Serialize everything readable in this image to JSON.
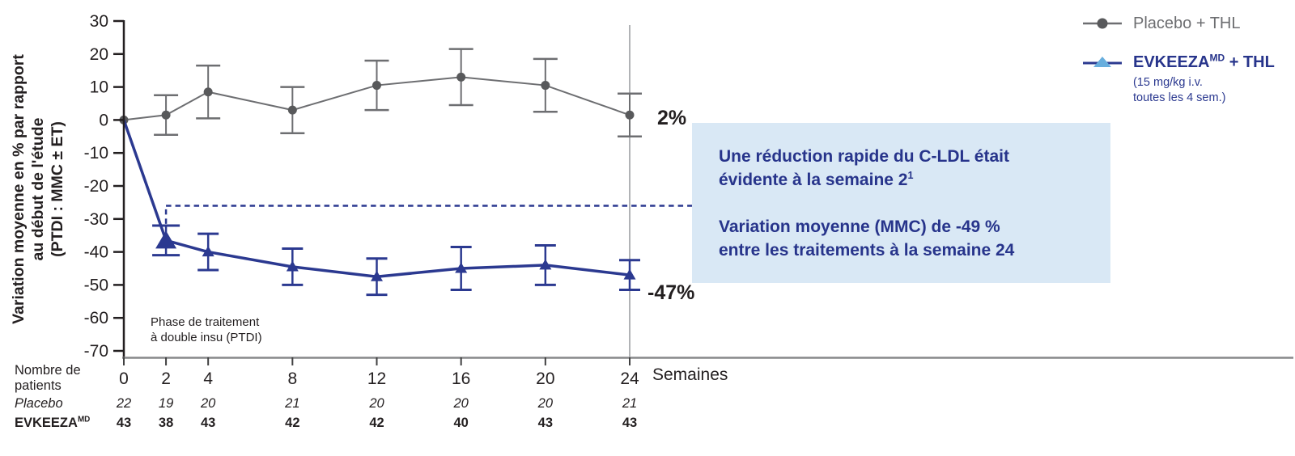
{
  "colors": {
    "navy": "#2b3990",
    "navy_text": "#27348b",
    "light_blue": "#68aedd",
    "box_bg": "#d9e8f5",
    "gray_line": "#6d6e71",
    "gray_marker": "#58595b",
    "ink": "#231f20",
    "axis_gray": "#87888a",
    "ref_line_gray": "#b1b3b6"
  },
  "y_axis": {
    "title_lines": [
      "Variation moyenne en % par rapport",
      "au début de l'étude",
      "(PTDI : MMC ± ET)"
    ],
    "ticks": [
      30,
      20,
      10,
      0,
      -10,
      -20,
      -30,
      -40,
      -50,
      -60,
      -70
    ]
  },
  "x_axis": {
    "label": "Semaines"
  },
  "chart_data": {
    "type": "line",
    "x": [
      0,
      2,
      4,
      8,
      12,
      16,
      20,
      24
    ],
    "series": [
      {
        "name": "Placebo + THL",
        "values": [
          0,
          1.5,
          8.5,
          3,
          10.5,
          13,
          10.5,
          1.5
        ],
        "errors": [
          0,
          6,
          8,
          7,
          7.5,
          8.5,
          8,
          6.5
        ],
        "marker": "circle",
        "end_label": "2%"
      },
      {
        "name": "EVKEEZA MD + THL (15 mg/kg i.v. toutes les 4 sem.)",
        "values": [
          0,
          -36.5,
          -40,
          -44.5,
          -47.5,
          -45,
          -44,
          -47
        ],
        "errors": [
          0,
          4.5,
          5.5,
          5.5,
          5.5,
          6.5,
          6,
          4.5
        ],
        "marker": "triangle",
        "end_label": "-47%",
        "highlight_point_index": 1
      }
    ],
    "ylim": [
      -70,
      30
    ],
    "xlabel": "Semaines",
    "ylabel": "Variation moyenne en % par rapport au début de l'étude (PTDI : MMC ± ET)",
    "grid": false,
    "legend_position": "top-right",
    "annotations": {
      "week24_reference_line": true,
      "dashed_connector_from_week": 2,
      "dashed_connector_y": -26
    }
  },
  "annotations": {
    "placebo_end_label": "2%",
    "evkeeza_end_label": "-47%",
    "phase_line1": "Phase de traitement",
    "phase_line2": "à double insu (PTDI)"
  },
  "legend": {
    "items": [
      {
        "label": "Placebo + THL"
      },
      {
        "label_main": "EVKEEZA",
        "label_sup": "MD",
        "label_rest": " + THL",
        "sub_line1": "(15 mg/kg i.v.",
        "sub_line2": "toutes les 4 sem.)"
      }
    ]
  },
  "callout": {
    "p1_line1": "Une réduction rapide du C-LDL était",
    "p1_line2": "évidente à la semaine 2",
    "p1_sup": "1",
    "p2_line1": "Variation moyenne (MMC) de -49 %",
    "p2_line2": "entre les traitements à la semaine 24"
  },
  "patients_table": {
    "header_line1": "Nombre de",
    "header_line2": "patients",
    "rows": [
      {
        "label": "Placebo",
        "sup": "",
        "values": [
          22,
          19,
          20,
          21,
          20,
          20,
          20,
          21
        ]
      },
      {
        "label": "EVKEEZA",
        "sup": "MD",
        "values": [
          43,
          38,
          43,
          42,
          42,
          40,
          43,
          43
        ]
      }
    ]
  }
}
